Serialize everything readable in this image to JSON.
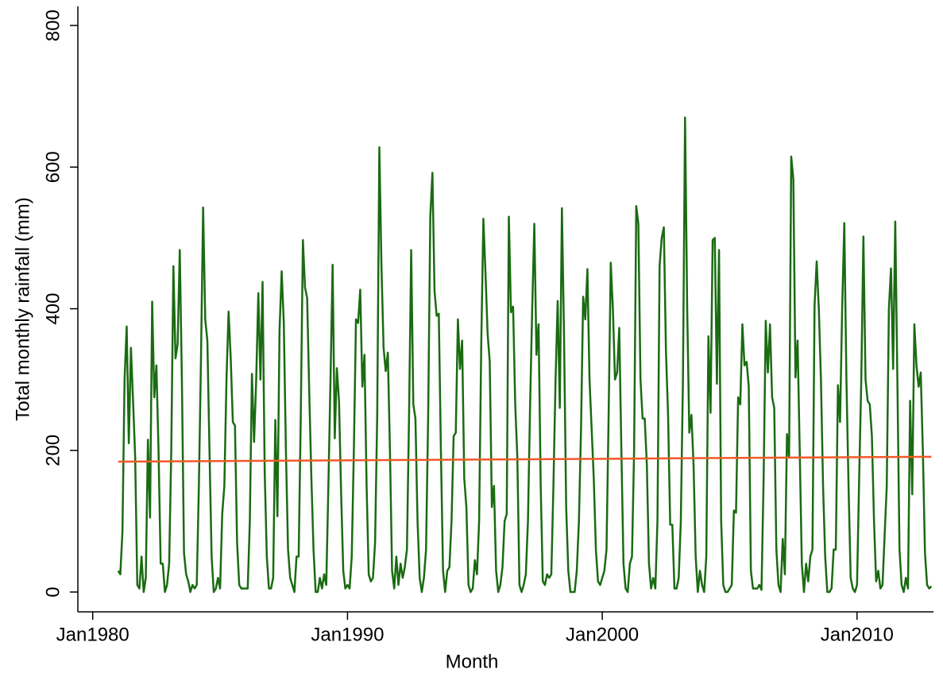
{
  "chart_data": {
    "type": "line",
    "ylabel": "Total monthly rainfall (mm)",
    "xlabel": "Month",
    "xlim": [
      "Jun1979",
      "Jan2013"
    ],
    "xticks": [
      "Jan1980",
      "Jan1990",
      "Jan2000",
      "Jan2010"
    ],
    "ylim": [
      -28,
      827
    ],
    "yticks": [
      0,
      200,
      400,
      600,
      800
    ],
    "x": [
      "Jan1981",
      "Feb1981",
      "Mar1981",
      "Apr1981",
      "May1981",
      "Jun1981",
      "Jul1981",
      "Aug1981",
      "Sep1981",
      "Oct1981",
      "Nov1981",
      "Dec1981",
      "Jan1982",
      "Feb1982",
      "Mar1982",
      "Apr1982",
      "May1982",
      "Jun1982",
      "Jul1982",
      "Aug1982",
      "Sep1982",
      "Oct1982",
      "Nov1982",
      "Dec1982",
      "Jan1983",
      "Feb1983",
      "Mar1983",
      "Apr1983",
      "May1983",
      "Jun1983",
      "Jul1983",
      "Aug1983",
      "Sep1983",
      "Oct1983",
      "Nov1983",
      "Dec1983",
      "Jan1984",
      "Feb1984",
      "Mar1984",
      "Apr1984",
      "May1984",
      "Jun1984",
      "Jul1984",
      "Aug1984",
      "Sep1984",
      "Oct1984",
      "Nov1984",
      "Dec1984",
      "Jan1985",
      "Feb1985",
      "Mar1985",
      "Apr1985",
      "May1985",
      "Jun1985",
      "Jul1985",
      "Aug1985",
      "Sep1985",
      "Oct1985",
      "Nov1985",
      "Dec1985",
      "Jan1986",
      "Feb1986",
      "Mar1986",
      "Apr1986",
      "May1986",
      "Jun1986",
      "Jul1986",
      "Aug1986",
      "Sep1986",
      "Oct1986",
      "Nov1986",
      "Dec1986",
      "Jan1987",
      "Feb1987",
      "Mar1987",
      "Apr1987",
      "May1987",
      "Jun1987",
      "Jul1987",
      "Aug1987",
      "Sep1987",
      "Oct1987",
      "Nov1987",
      "Dec1987",
      "Jan1988",
      "Feb1988",
      "Mar1988",
      "Apr1988",
      "May1988",
      "Jun1988",
      "Jul1988",
      "Aug1988",
      "Sep1988",
      "Oct1988",
      "Nov1988",
      "Dec1988",
      "Jan1989",
      "Feb1989",
      "Mar1989",
      "Apr1989",
      "May1989",
      "Jun1989",
      "Jul1989",
      "Aug1989",
      "Sep1989",
      "Oct1989",
      "Nov1989",
      "Dec1989",
      "Jan1990",
      "Feb1990",
      "Mar1990",
      "Apr1990",
      "May1990",
      "Jun1990",
      "Jul1990",
      "Aug1990",
      "Sep1990",
      "Oct1990",
      "Nov1990",
      "Dec1990",
      "Jan1991",
      "Feb1991",
      "Mar1991",
      "Apr1991",
      "May1991",
      "Jun1991",
      "Jul1991",
      "Aug1991",
      "Sep1991",
      "Oct1991",
      "Nov1991",
      "Dec1991",
      "Jan1992",
      "Feb1992",
      "Mar1992",
      "Apr1992",
      "May1992",
      "Jun1992",
      "Jul1992",
      "Aug1992",
      "Sep1992",
      "Oct1992",
      "Nov1992",
      "Dec1992",
      "Jan1993",
      "Feb1993",
      "Mar1993",
      "Apr1993",
      "May1993",
      "Jun1993",
      "Jul1993",
      "Aug1993",
      "Sep1993",
      "Oct1993",
      "Nov1993",
      "Dec1993",
      "Jan1994",
      "Feb1994",
      "Mar1994",
      "Apr1994",
      "May1994",
      "Jun1994",
      "Jul1994",
      "Aug1994",
      "Sep1994",
      "Oct1994",
      "Nov1994",
      "Dec1994",
      "Jan1995",
      "Feb1995",
      "Mar1995",
      "Apr1995",
      "May1995",
      "Jun1995",
      "Jul1995",
      "Aug1995",
      "Sep1995",
      "Oct1995",
      "Nov1995",
      "Dec1995",
      "Jan1996",
      "Feb1996",
      "Mar1996",
      "Apr1996",
      "May1996",
      "Jun1996",
      "Jul1996",
      "Aug1996",
      "Sep1996",
      "Oct1996",
      "Nov1996",
      "Dec1996",
      "Jan1997",
      "Feb1997",
      "Mar1997",
      "Apr1997",
      "May1997",
      "Jun1997",
      "Jul1997",
      "Aug1997",
      "Sep1997",
      "Oct1997",
      "Nov1997",
      "Dec1997",
      "Jan1998",
      "Feb1998",
      "Mar1998",
      "Apr1998",
      "May1998",
      "Jun1998",
      "Jul1998",
      "Aug1998",
      "Sep1998",
      "Oct1998",
      "Nov1998",
      "Dec1998",
      "Jan1999",
      "Feb1999",
      "Mar1999",
      "Apr1999",
      "May1999",
      "Jun1999",
      "Jul1999",
      "Aug1999",
      "Sep1999",
      "Oct1999",
      "Nov1999",
      "Dec1999",
      "Jan2000",
      "Feb2000",
      "Mar2000",
      "Apr2000",
      "May2000",
      "Jun2000",
      "Jul2000",
      "Aug2000",
      "Sep2000",
      "Oct2000",
      "Nov2000",
      "Dec2000",
      "Jan2001",
      "Feb2001",
      "Mar2001",
      "Apr2001",
      "May2001",
      "Jun2001",
      "Jul2001",
      "Aug2001",
      "Sep2001",
      "Oct2001",
      "Nov2001",
      "Dec2001",
      "Jan2002",
      "Feb2002",
      "Mar2002",
      "Apr2002",
      "May2002",
      "Jun2002",
      "Jul2002",
      "Aug2002",
      "Sep2002",
      "Oct2002",
      "Nov2002",
      "Dec2002",
      "Jan2003",
      "Feb2003",
      "Mar2003",
      "Apr2003",
      "May2003",
      "Jun2003",
      "Jul2003",
      "Aug2003",
      "Sep2003",
      "Oct2003",
      "Nov2003",
      "Dec2003",
      "Jan2004",
      "Feb2004",
      "Mar2004",
      "Apr2004",
      "May2004",
      "Jun2004",
      "Jul2004",
      "Aug2004",
      "Sep2004",
      "Oct2004",
      "Nov2004",
      "Dec2004",
      "Jan2005",
      "Feb2005",
      "Mar2005",
      "Apr2005",
      "May2005",
      "Jun2005",
      "Jul2005",
      "Aug2005",
      "Sep2005",
      "Oct2005",
      "Nov2005",
      "Dec2005",
      "Jan2006",
      "Feb2006",
      "Mar2006",
      "Apr2006",
      "May2006",
      "Jun2006",
      "Jul2006",
      "Aug2006",
      "Sep2006",
      "Oct2006",
      "Nov2006",
      "Dec2006",
      "Jan2007",
      "Feb2007",
      "Mar2007",
      "Apr2007",
      "May2007",
      "Jun2007",
      "Jul2007",
      "Aug2007",
      "Sep2007",
      "Oct2007",
      "Nov2007",
      "Dec2007",
      "Jan2008",
      "Feb2008",
      "Mar2008",
      "Apr2008",
      "May2008",
      "Jun2008",
      "Jul2008",
      "Aug2008",
      "Sep2008",
      "Oct2008",
      "Nov2008",
      "Dec2008",
      "Jan2009",
      "Feb2009",
      "Mar2009",
      "Apr2009",
      "May2009",
      "Jun2009",
      "Jul2009",
      "Aug2009",
      "Sep2009",
      "Oct2009",
      "Nov2009",
      "Dec2009",
      "Jan2010",
      "Feb2010",
      "Mar2010",
      "Apr2010",
      "May2010",
      "Jun2010",
      "Jul2010",
      "Aug2010",
      "Sep2010",
      "Oct2010",
      "Nov2010",
      "Dec2010",
      "Jan2011",
      "Feb2011",
      "Mar2011",
      "Apr2011",
      "May2011",
      "Jun2011",
      "Jul2011",
      "Aug2011",
      "Sep2011",
      "Oct2011",
      "Nov2011",
      "Dec2011",
      "Jan2012",
      "Feb2012",
      "Mar2012",
      "Apr2012",
      "May2012",
      "Jun2012",
      "Jul2012",
      "Aug2012",
      "Sep2012",
      "Oct2012",
      "Nov2012",
      "Dec2012"
    ],
    "series": [
      {
        "color": "#1a6b12",
        "values": [
          30,
          25,
          85,
          300,
          375,
          210,
          345,
          270,
          190,
          10,
          5,
          50,
          0,
          20,
          215,
          105,
          410,
          275,
          320,
          200,
          40,
          40,
          0,
          10,
          40,
          200,
          460,
          330,
          350,
          483,
          300,
          55,
          25,
          15,
          0,
          10,
          5,
          10,
          150,
          330,
          543,
          385,
          355,
          200,
          50,
          0,
          5,
          20,
          5,
          110,
          150,
          300,
          396,
          330,
          240,
          235,
          70,
          10,
          5,
          5,
          5,
          5,
          100,
          308,
          212,
          300,
          422,
          300,
          438,
          170,
          50,
          5,
          5,
          20,
          243,
          107,
          370,
          453,
          380,
          200,
          60,
          20,
          10,
          0,
          50,
          50,
          250,
          497,
          430,
          415,
          280,
          160,
          60,
          0,
          0,
          20,
          5,
          25,
          10,
          150,
          300,
          462,
          217,
          316,
          270,
          140,
          30,
          5,
          10,
          5,
          50,
          200,
          385,
          380,
          427,
          290,
          335,
          150,
          25,
          15,
          20,
          70,
          250,
          628,
          460,
          345,
          312,
          338,
          200,
          30,
          5,
          50,
          10,
          40,
          20,
          35,
          60,
          250,
          483,
          265,
          245,
          100,
          20,
          0,
          20,
          60,
          250,
          530,
          592,
          425,
          390,
          393,
          200,
          30,
          0,
          30,
          35,
          100,
          220,
          225,
          385,
          315,
          355,
          160,
          120,
          10,
          0,
          5,
          45,
          25,
          100,
          350,
          527,
          450,
          365,
          325,
          120,
          150,
          30,
          0,
          10,
          35,
          100,
          110,
          530,
          395,
          403,
          265,
          190,
          10,
          0,
          10,
          25,
          100,
          262,
          400,
          520,
          335,
          378,
          150,
          15,
          10,
          25,
          20,
          25,
          150,
          300,
          411,
          260,
          542,
          360,
          120,
          30,
          0,
          0,
          0,
          30,
          100,
          230,
          417,
          385,
          456,
          300,
          230,
          160,
          60,
          15,
          10,
          20,
          30,
          60,
          250,
          465,
          400,
          300,
          310,
          373,
          200,
          40,
          5,
          0,
          40,
          50,
          200,
          545,
          520,
          300,
          245,
          245,
          180,
          40,
          5,
          20,
          5,
          100,
          460,
          500,
          515,
          340,
          250,
          95,
          95,
          5,
          5,
          20,
          100,
          300,
          670,
          400,
          225,
          250,
          180,
          50,
          0,
          30,
          10,
          0,
          50,
          361,
          253,
          497,
          500,
          294,
          483,
          100,
          10,
          0,
          0,
          5,
          10,
          115,
          112,
          275,
          265,
          378,
          320,
          325,
          290,
          30,
          5,
          5,
          5,
          10,
          3,
          160,
          383,
          310,
          378,
          275,
          260,
          60,
          10,
          0,
          75,
          25,
          223,
          190,
          615,
          583,
          303,
          355,
          200,
          40,
          0,
          40,
          15,
          50,
          60,
          405,
          467,
          400,
          300,
          150,
          50,
          0,
          0,
          5,
          60,
          60,
          292,
          240,
          400,
          521,
          300,
          150,
          20,
          5,
          0,
          10,
          160,
          300,
          502,
          300,
          270,
          265,
          220,
          100,
          15,
          30,
          5,
          10,
          80,
          150,
          400,
          457,
          315,
          523,
          300,
          60,
          10,
          0,
          20,
          5,
          270,
          138,
          378,
          320,
          290,
          310,
          200,
          55,
          10,
          5,
          8
        ]
      }
    ],
    "fit": {
      "color": "#f05a28",
      "x": [
        "Jan1981",
        "Dec2012"
      ],
      "values": [
        184,
        191
      ]
    }
  }
}
